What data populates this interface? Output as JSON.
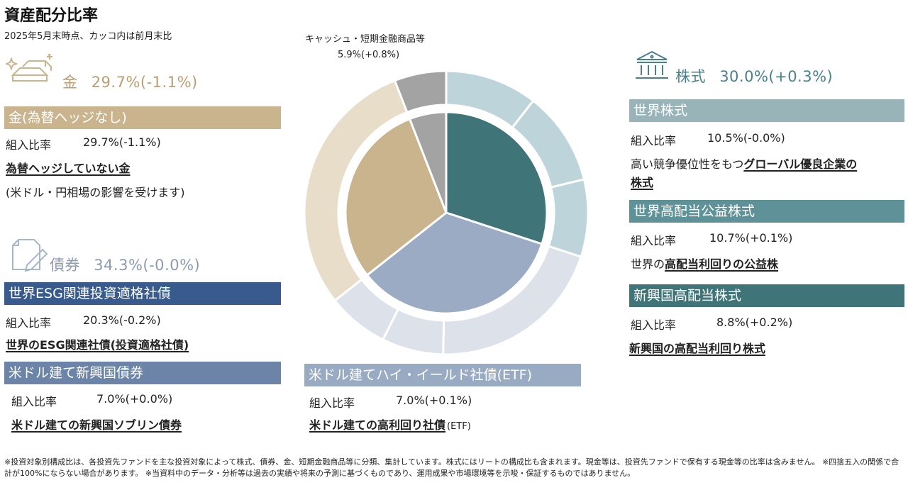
{
  "header": {
    "title": "資産配分比率",
    "subtitle": "2025年5月末時点、カッコ内は前月末比"
  },
  "colors": {
    "gold": "#c9b48d",
    "gold_light": "#e8ddc9",
    "bond_dark": "#385a8d",
    "bond_mid": "#6b84a8",
    "bond_light": "#99abc2",
    "bond_ring": "#dde2ea",
    "stock_dark": "#3f7479",
    "stock_mid": "#8eb0b4",
    "stock_light": "#bdd5da",
    "cash": "#a3a3a3",
    "stock_bar1": "#98b4b9",
    "stock_bar2": "#5e9298",
    "stock_bar3": "#3f7479"
  },
  "gold_section": {
    "icon": "gold-bars-icon",
    "name": "金",
    "value": "29.7%(-1.1%)",
    "funds": [
      {
        "name": "金(為替ヘッジなし)",
        "ratio_label": "組入比率",
        "ratio": "29.7%(-1.1%)",
        "desc_main": "為替ヘッジしていない金",
        "desc_sub": "(米ドル・円相場の影響を受けます)"
      }
    ]
  },
  "bond_section": {
    "icon": "document-pen-icon",
    "name": "債券",
    "value": "34.3%(-0.0%)",
    "funds": [
      {
        "name": "世界ESG関連投資適格社債",
        "ratio_label": "組入比率",
        "ratio": "20.3%(-0.2%)",
        "desc_main": "世界のESG関連社債(投資適格社債)"
      },
      {
        "name": "米ドル建て新興国債券",
        "ratio_label": "組入比率",
        "ratio": "7.0%(+0.0%)",
        "desc_main": "米ドル建ての新興国ソブリン債券"
      },
      {
        "name": "米ドル建てハイ・イールド社債(ETF)",
        "ratio_label": "組入比率",
        "ratio": "7.0%(+0.1%)",
        "desc_main": "米ドル建ての高利回り社債",
        "desc_tail": "(ETF)"
      }
    ]
  },
  "stock_section": {
    "icon": "bank-building-icon",
    "name": "株式",
    "value": "30.0%(+0.3%)",
    "funds": [
      {
        "name": "世界株式",
        "ratio_label": "組入比率",
        "ratio": "10.5%(-0.0%)",
        "desc_pre": "高い競争優位性をもつ",
        "desc_main": "グローバル優良企業の",
        "desc_main2": "株式"
      },
      {
        "name": "世界高配当公益株式",
        "ratio_label": "組入比率",
        "ratio": "10.7%(+0.1%)",
        "desc_pre": "世界の",
        "desc_main": "高配当利回りの公益株"
      },
      {
        "name": "新興国高配当株式",
        "ratio_label": "組入比率",
        "ratio": "8.8%(+0.2%)",
        "desc_main": "新興国の高配当利回り株式"
      }
    ]
  },
  "cash_label": {
    "name": "キャッシュ・短期金融商品等",
    "value": "5.9%(+0.8%)"
  },
  "chart_data": {
    "type": "pie",
    "inner": {
      "categories": [
        "株式",
        "債券",
        "金",
        "キャッシュ・短期金融商品等"
      ],
      "values": [
        30.0,
        34.3,
        29.7,
        5.9
      ],
      "colors": [
        "#3f7479",
        "#9aabc3",
        "#c9b48d",
        "#a3a3a3"
      ]
    },
    "outer": {
      "categories": [
        "世界株式",
        "世界高配当公益株式",
        "新興国高配当株式",
        "世界ESG関連投資適格社債",
        "米ドル建て新興国債券",
        "米ドル建てハイ・イールド社債(ETF)",
        "金(為替ヘッジなし)",
        "キャッシュ・短期金融商品等"
      ],
      "values": [
        10.5,
        10.7,
        8.8,
        20.3,
        7.0,
        7.0,
        29.7,
        5.9
      ],
      "colors": [
        "#bdd5da",
        "#bdd5da",
        "#bdd5da",
        "#dde2ea",
        "#dde2ea",
        "#dde2ea",
        "#e8ddc9",
        "#a3a3a3"
      ]
    }
  },
  "footnote": "※投資対象別構成比は、各投資先ファンドを主な投資対象によって株式、債券、金、短期金融商品等に分類、集計しています。株式にはリートの構成比も含まれます。現金等は、投資先ファンドで保有する現金等の比率は含みません。 ※四捨五入の関係で合計が100%にならない場合があります。 ※当資料中のデータ・分析等は過去の実績や将来の予測に基づくものであり、運用成果や市場環境等を示唆・保証するものではありません。"
}
